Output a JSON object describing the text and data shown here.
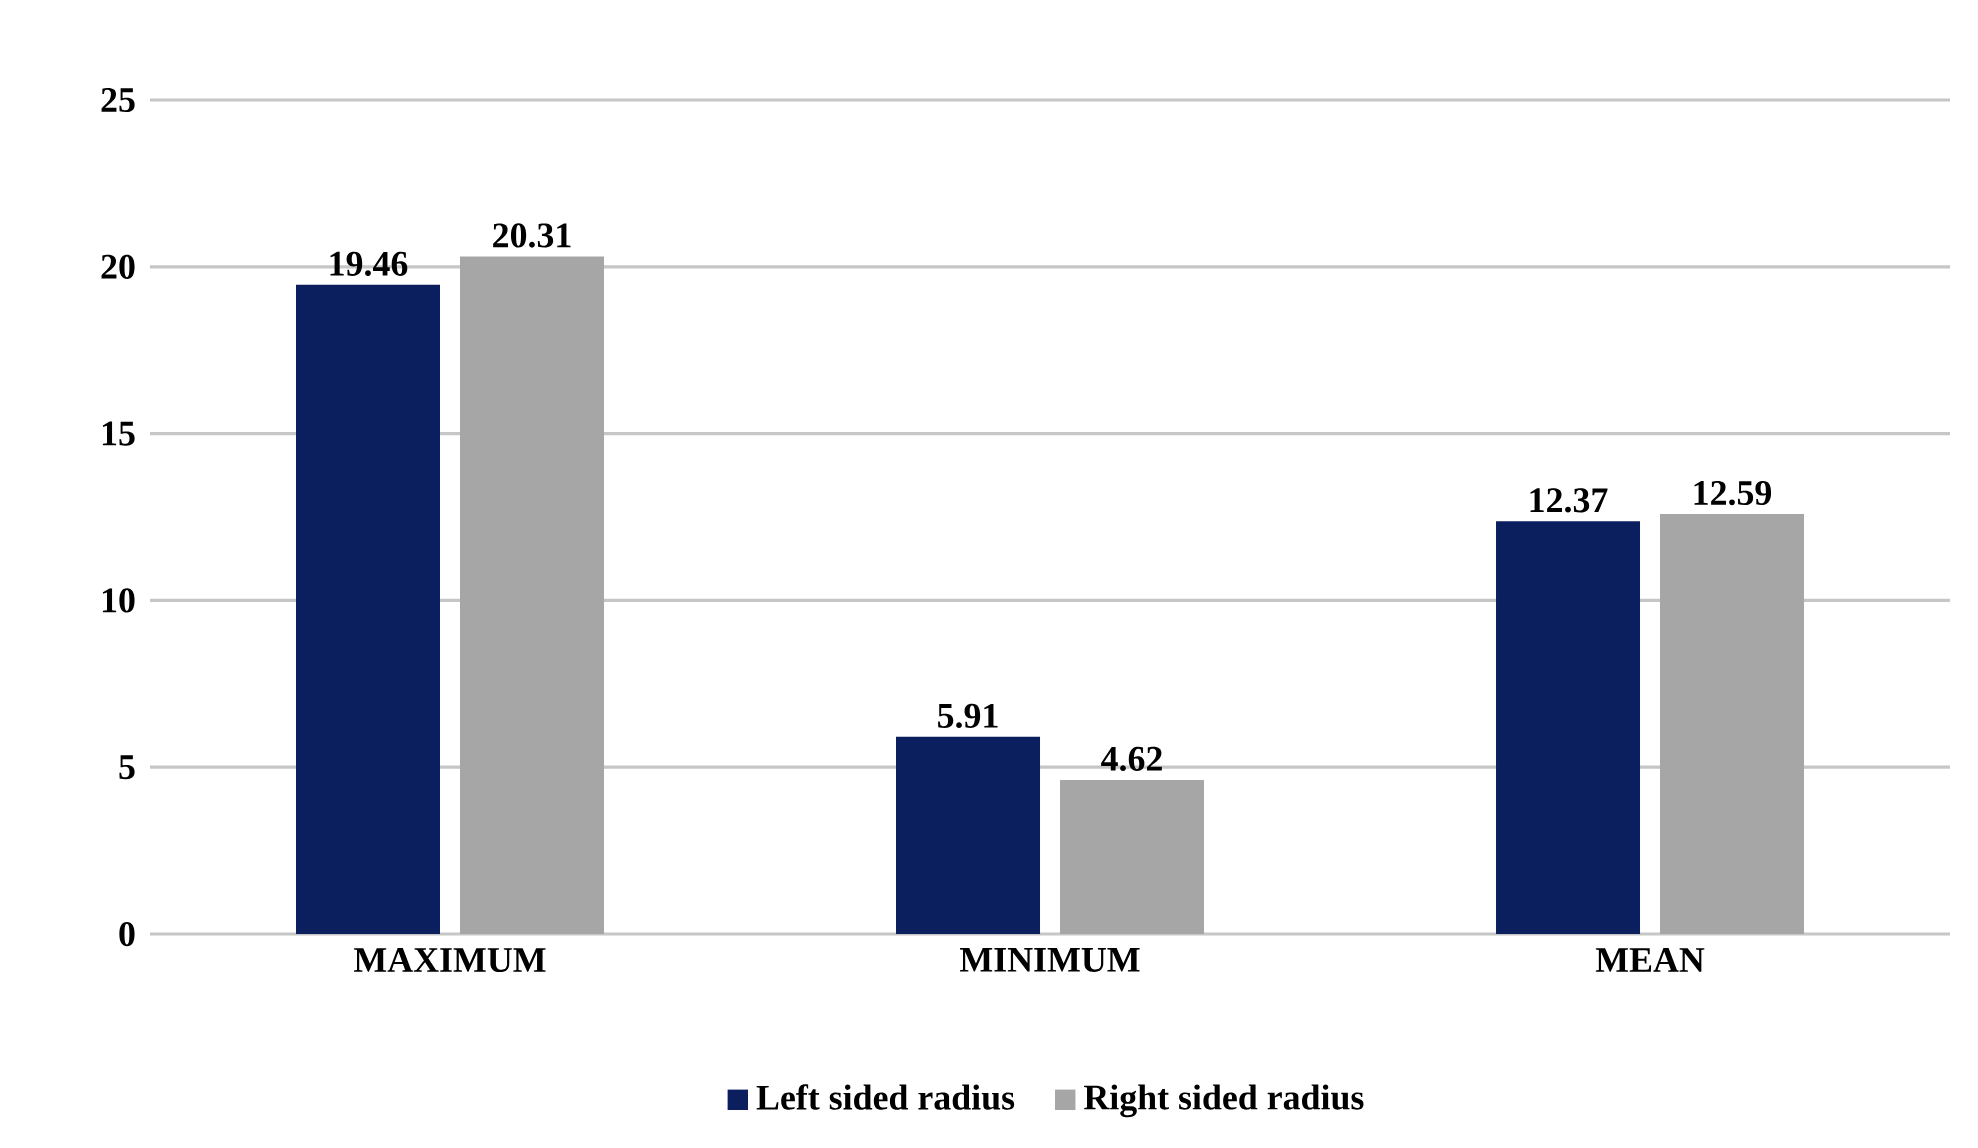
{
  "chart_data": {
    "type": "bar",
    "categories": [
      "MAXIMUM",
      "MINIMUM",
      "MEAN"
    ],
    "series": [
      {
        "name": "Left sided radius",
        "color": "#0b1f5e",
        "values": [
          19.46,
          5.91,
          12.37
        ]
      },
      {
        "name": "Right sided radius",
        "color": "#a6a6a6",
        "values": [
          20.31,
          4.62,
          12.59
        ]
      }
    ],
    "ylim": [
      0,
      25
    ],
    "yticks": [
      0,
      5,
      10,
      15,
      20,
      25
    ],
    "grid": "y",
    "legend": "bottom",
    "data_labels": true
  }
}
